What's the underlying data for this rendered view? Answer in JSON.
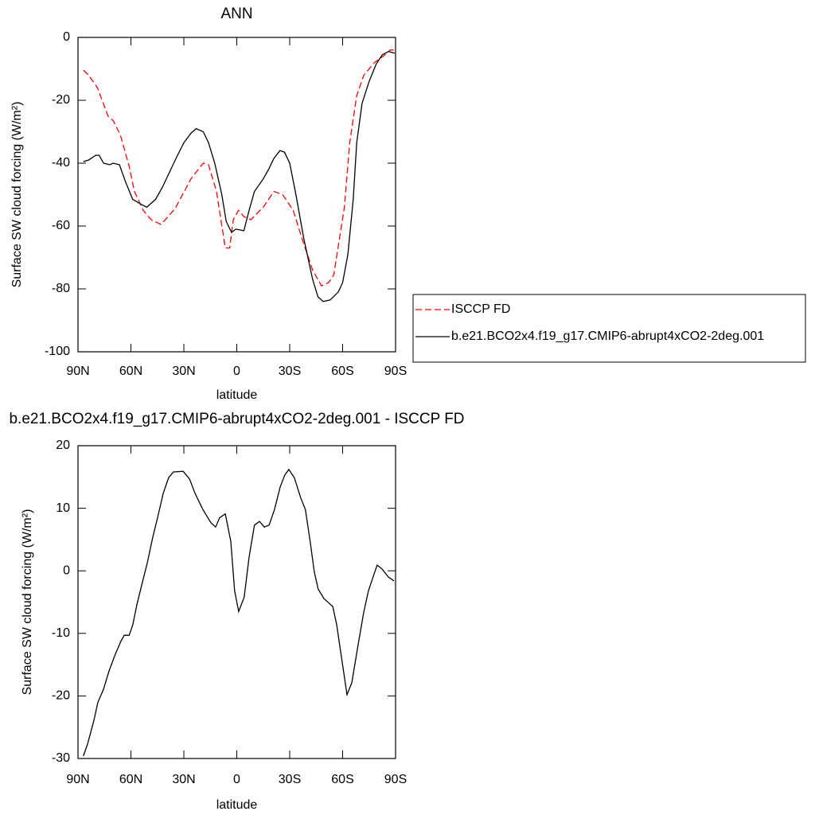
{
  "chart_data": [
    {
      "type": "line",
      "title": "ANN",
      "xlabel": "latitude",
      "ylabel": "Surface SW cloud forcing (W/m²)",
      "xlim": [
        90,
        -90
      ],
      "ylim": [
        -100,
        0
      ],
      "xticks": [
        {
          "value": 90,
          "label": "90N"
        },
        {
          "value": 60,
          "label": "60N"
        },
        {
          "value": 30,
          "label": "30N"
        },
        0,
        {
          "value": -30,
          "label": "30S"
        },
        {
          "value": -60,
          "label": "60S"
        },
        {
          "value": -90,
          "label": "90S"
        }
      ],
      "yticks": [
        -100,
        -80,
        -60,
        -40,
        -20,
        0
      ],
      "legend": "right",
      "series": [
        {
          "name": "ISCCP FD",
          "color": "#ff0000",
          "linestyle": "dashed",
          "x": [
            87,
            84,
            79,
            73,
            70,
            66,
            61,
            58,
            53,
            48.5,
            43,
            35,
            26,
            19,
            16,
            11.5,
            6.5,
            4,
            2,
            -1,
            -4,
            -8,
            -15,
            -21,
            -26,
            -32,
            -37,
            -43,
            -48,
            -52,
            -55,
            -61,
            -64,
            -68,
            -72,
            -78,
            -83,
            -87,
            -89.5
          ],
          "values": [
            -10.4,
            -12,
            -16,
            -25,
            -26.5,
            -31,
            -41,
            -49,
            -55,
            -58,
            -59.5,
            -54.5,
            -45,
            -40,
            -40.5,
            -49,
            -67,
            -67,
            -58,
            -55,
            -57,
            -58,
            -54,
            -49,
            -50,
            -55,
            -64,
            -74,
            -79,
            -78,
            -75.5,
            -54,
            -33.5,
            -18.5,
            -12,
            -8,
            -6,
            -4,
            -4
          ]
        },
        {
          "name": "b.e21.BCO2x4.f19_g17.CMIP6-abrupt4xCO2-2deg.001",
          "color": "#000000",
          "linestyle": "solid",
          "x": [
            87,
            84,
            80,
            78,
            75.5,
            72,
            70,
            66.5,
            63,
            59,
            54.5,
            51,
            46,
            42,
            37,
            34,
            30,
            26,
            23,
            19,
            16,
            12.5,
            8.5,
            6,
            3,
            0.5,
            -4,
            -7,
            -10,
            -15,
            -18,
            -21,
            -24.5,
            -27,
            -30,
            -33.5,
            -38,
            -43,
            -46,
            -49,
            -53,
            -57.5,
            -60,
            -63,
            -66,
            -68,
            -71,
            -75,
            -79,
            -82.5,
            -86,
            -89.5
          ],
          "values": [
            -39.5,
            -39,
            -37.5,
            -37.5,
            -40,
            -40.5,
            -40,
            -40.5,
            -46,
            -51.5,
            -53,
            -54,
            -51.5,
            -47.5,
            -41.5,
            -38,
            -33.5,
            -30.5,
            -29,
            -30,
            -33.5,
            -40,
            -50,
            -58.5,
            -62,
            -61,
            -61.5,
            -55,
            -49,
            -45,
            -42,
            -38.5,
            -36,
            -36.5,
            -40,
            -50,
            -64,
            -77,
            -82.5,
            -84,
            -83.5,
            -81,
            -78,
            -69,
            -51.5,
            -33.5,
            -21,
            -14,
            -8.5,
            -5.5,
            -4.5,
            -5
          ]
        }
      ]
    },
    {
      "type": "line",
      "title": "b.e21.BCO2x4.f19_g17.CMIP6-abrupt4xCO2-2deg.001 - ISCCP FD",
      "xlabel": "latitude",
      "ylabel": "Surface SW cloud forcing (W/m²)",
      "xlim": [
        90,
        -90
      ],
      "ylim": [
        -30,
        20
      ],
      "xticks": [
        {
          "value": 90,
          "label": "90N"
        },
        {
          "value": 60,
          "label": "60N"
        },
        {
          "value": 30,
          "label": "30N"
        },
        0,
        {
          "value": -30,
          "label": "30S"
        },
        {
          "value": -60,
          "label": "60S"
        },
        {
          "value": -90,
          "label": "90S"
        }
      ],
      "yticks": [
        -30,
        -20,
        -10,
        0,
        10,
        20
      ],
      "series": [
        {
          "color": "#000000",
          "linestyle": "solid",
          "x": [
            87,
            84.6,
            81,
            78.7,
            75.6,
            72.4,
            68.8,
            65.6,
            63.8,
            61,
            58.9,
            56.6,
            53.9,
            50.7,
            47.6,
            44.9,
            41.7,
            38.6,
            35.9,
            30.4,
            26.8,
            23.7,
            19.2,
            14.7,
            12,
            9.7,
            6.5,
            3.4,
            1.2,
            -1.1,
            -4.2,
            -7,
            -10,
            -12.9,
            -15.6,
            -18.3,
            -21.4,
            -24.6,
            -27.2,
            -29.5,
            -32.6,
            -36.2,
            -38.9,
            -41.6,
            -43.9,
            -46.1,
            -49.3,
            -52,
            -54.4,
            -56.6,
            -59.3,
            -62.5,
            -65.2,
            -68.8,
            -71.9,
            -74.6,
            -77,
            -79.6,
            -82.3,
            -86,
            -89.1
          ],
          "values": [
            -29.6,
            -27.7,
            -23.9,
            -21,
            -19,
            -16,
            -13.3,
            -11.2,
            -10.3,
            -10.3,
            -8.6,
            -5.4,
            -2.3,
            1.3,
            5.4,
            8.5,
            12.4,
            14.9,
            15.8,
            15.9,
            14.7,
            12.4,
            9.8,
            7.7,
            7,
            8.5,
            9.1,
            4.7,
            -3.2,
            -6.5,
            -4.2,
            2.2,
            7.3,
            7.9,
            7,
            7.3,
            9.8,
            13.4,
            15.3,
            16.2,
            14.9,
            11.7,
            9.8,
            4.7,
            -0.1,
            -2.9,
            -4.4,
            -5.1,
            -5.7,
            -8.6,
            -13.7,
            -19.8,
            -17.9,
            -11.8,
            -6.7,
            -3.2,
            -1.2,
            0.9,
            0.3,
            -1,
            -1.6
          ]
        }
      ]
    }
  ]
}
